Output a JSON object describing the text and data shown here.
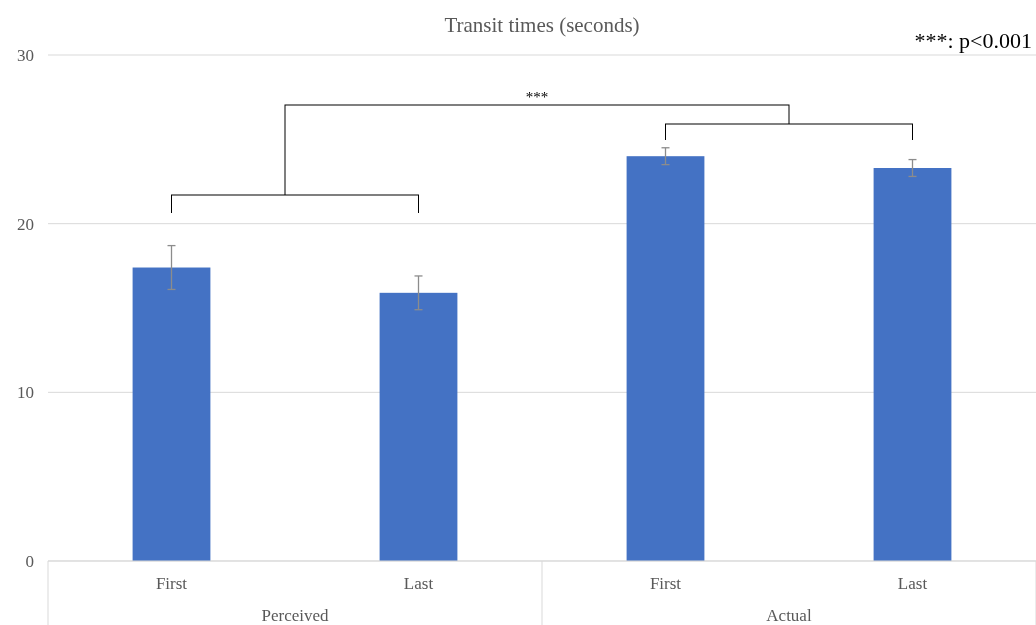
{
  "chart_data": {
    "type": "bar",
    "title": "Transit times (seconds)",
    "categories": [
      "First",
      "Last",
      "First",
      "Last"
    ],
    "values": [
      17.4,
      15.9,
      24.0,
      23.3
    ],
    "errors": [
      1.3,
      1.0,
      0.5,
      0.5
    ],
    "color": "#4472c4",
    "ylim": [
      0,
      30
    ],
    "yticks": [
      0,
      10,
      20,
      30
    ],
    "grid": "y",
    "annotations": [
      "***: p<0.001",
      "***",
      "Perceived",
      "Actual"
    ]
  }
}
